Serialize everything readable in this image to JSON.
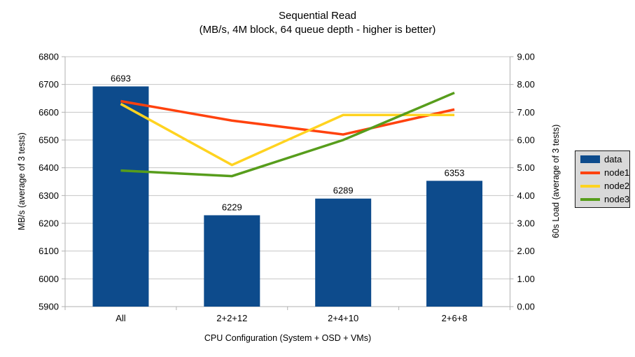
{
  "chart_data": {
    "type": "bar+line",
    "title": "Sequential Read",
    "subtitle": "(MB/s, 4M block, 64 queue depth - higher is better)",
    "categories": [
      "All",
      "2+2+12",
      "2+4+10",
      "2+6+8"
    ],
    "xlabel": "CPU Configuration (System + OSD + VMs)",
    "left_axis": {
      "label": "MB/s (average of 3 tests)",
      "min": 5900,
      "max": 6800,
      "step": 100,
      "tick_labels": [
        "5900",
        "6000",
        "6100",
        "6200",
        "6300",
        "6400",
        "6500",
        "6600",
        "6700",
        "6800"
      ]
    },
    "right_axis": {
      "label": "60s Load (average of 3 tests)",
      "min": 0,
      "max": 9,
      "step": 1,
      "tick_labels": [
        "0.00",
        "1.00",
        "2.00",
        "3.00",
        "4.00",
        "5.00",
        "6.00",
        "7.00",
        "8.00",
        "9.00"
      ]
    },
    "bar_series": {
      "name": "data",
      "axis": "left",
      "color": "#0d4b8c",
      "values": [
        6693,
        6229,
        6289,
        6353
      ],
      "data_labels": [
        "6693",
        "6229",
        "6289",
        "6353"
      ]
    },
    "line_series": [
      {
        "name": "node1",
        "axis": "right",
        "color": "#ff420e",
        "values": [
          7.4,
          6.7,
          6.2,
          7.1
        ]
      },
      {
        "name": "node2",
        "axis": "right",
        "color": "#ffd320",
        "values": [
          7.3,
          5.1,
          6.9,
          6.9
        ]
      },
      {
        "name": "node3",
        "axis": "right",
        "color": "#579d1c",
        "values": [
          4.9,
          4.7,
          6.0,
          7.7
        ]
      }
    ],
    "legend": {
      "position": "right",
      "items": [
        "data",
        "node1",
        "node2",
        "node3"
      ]
    },
    "grid": true,
    "style": {
      "grid_color": "#c6c6c6",
      "axis_color": "#b1b1b1",
      "legend_bg": "#d9d9d9",
      "legend_border": "#1a1a1a",
      "text_color": "#000000"
    }
  }
}
